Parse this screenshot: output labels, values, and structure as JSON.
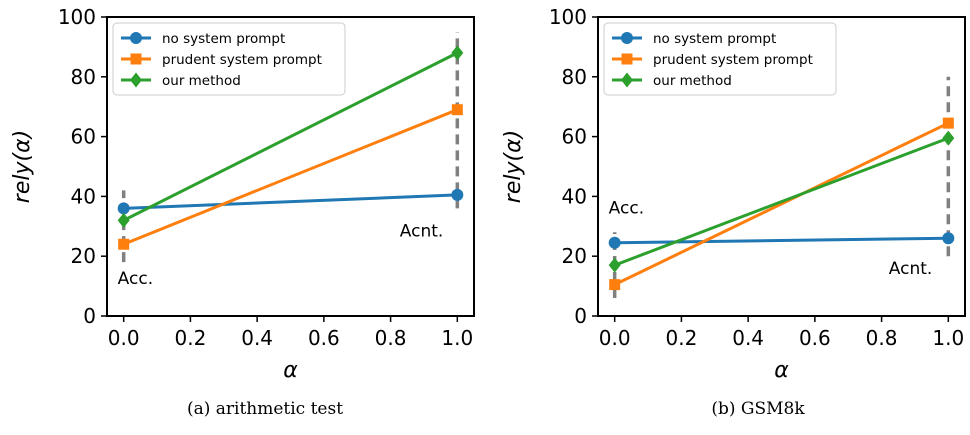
{
  "colors": {
    "no_system_prompt": "#1f77b4",
    "prudent_system_prompt": "#ff7f0e",
    "our_method": "#2ca02c",
    "error_bar": "#808080"
  },
  "legend_location": "top-left",
  "chart_data": [
    {
      "type": "line",
      "caption": "(a)  arithmetic test",
      "xlabel": "α",
      "ylabel": "rely(α)",
      "xlim": [
        -0.05,
        1.05
      ],
      "ylim": [
        0,
        100
      ],
      "xticks": [
        "0.0",
        "0.2",
        "0.4",
        "0.6",
        "0.8",
        "1.0"
      ],
      "yticks": [
        "0",
        "20",
        "40",
        "60",
        "80",
        "100"
      ],
      "grid": false,
      "x": [
        0.0,
        1.0
      ],
      "series": [
        {
          "name": "no system prompt",
          "marker": "circle",
          "values": [
            36,
            40.5
          ]
        },
        {
          "name": "prudent system prompt",
          "marker": "square",
          "values": [
            24,
            69
          ]
        },
        {
          "name": "our method",
          "marker": "diamond",
          "values": [
            32,
            88
          ]
        }
      ],
      "range_bars": [
        {
          "x": 0.0,
          "low": 18,
          "high": 42,
          "label": "Acc."
        },
        {
          "x": 1.0,
          "low": 36,
          "high": 95,
          "label": "Acnt."
        }
      ]
    },
    {
      "type": "line",
      "caption": "(b)  GSM8k",
      "xlabel": "α",
      "ylabel": "rely(α)",
      "xlim": [
        -0.05,
        1.05
      ],
      "ylim": [
        0,
        100
      ],
      "xticks": [
        "0.0",
        "0.2",
        "0.4",
        "0.6",
        "0.8",
        "1.0"
      ],
      "yticks": [
        "0",
        "20",
        "40",
        "60",
        "80",
        "100"
      ],
      "grid": false,
      "x": [
        0.0,
        1.0
      ],
      "series": [
        {
          "name": "no system prompt",
          "marker": "circle",
          "values": [
            24.5,
            26
          ]
        },
        {
          "name": "prudent system prompt",
          "marker": "square",
          "values": [
            10.5,
            64.5
          ]
        },
        {
          "name": "our method",
          "marker": "diamond",
          "values": [
            17,
            59.5
          ]
        }
      ],
      "range_bars": [
        {
          "x": 0.0,
          "low": 6,
          "high": 28,
          "label": "Acc."
        },
        {
          "x": 1.0,
          "low": 20,
          "high": 80,
          "label": "Acnt."
        }
      ]
    }
  ]
}
